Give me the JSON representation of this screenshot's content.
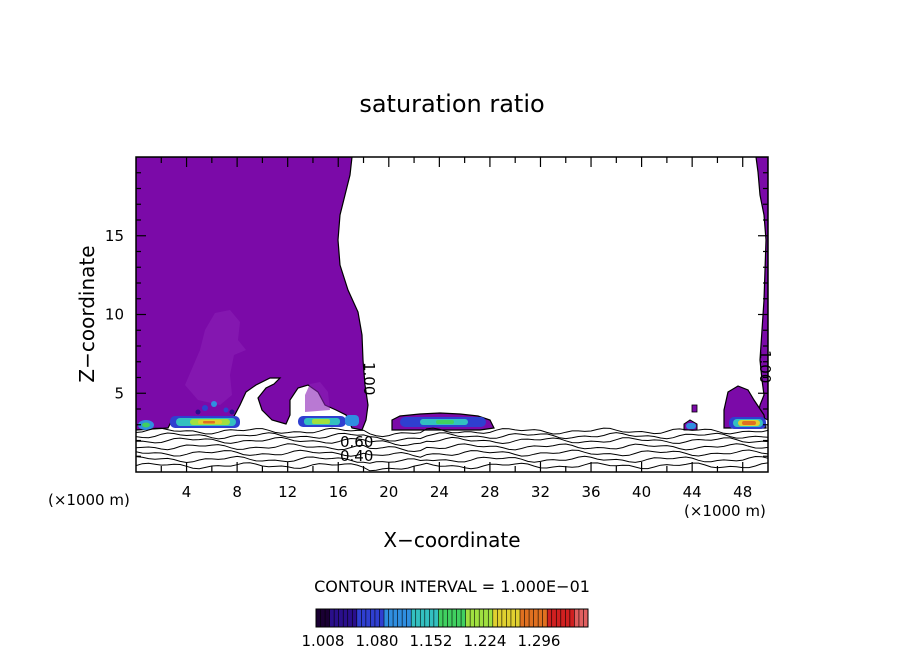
{
  "chart_data": {
    "type": "contour",
    "title": "saturation ratio",
    "xlabel": "X−coordinate",
    "ylabel": "Z−coordinate",
    "x_units_left": "(×1000 m)",
    "x_units_right": "(×1000 m)",
    "xlim": [
      0,
      50
    ],
    "ylim": [
      0,
      20
    ],
    "x_ticks": [
      "4",
      "8",
      "12",
      "16",
      "20",
      "24",
      "28",
      "32",
      "36",
      "40",
      "44",
      "48"
    ],
    "y_ticks": [
      "5",
      "10",
      "15"
    ],
    "contour_interval_text": "CONTOUR INTERVAL = 1.000E−01",
    "contour_labels": [
      "1.00",
      "0.60",
      "0.40",
      "1.00"
    ],
    "color_scale": {
      "labels": [
        "1.008",
        "1.080",
        "1.152",
        "1.224",
        "1.296"
      ],
      "colors": [
        "#1a0033",
        "#2a0f8c",
        "#2f3fd0",
        "#2f8ee0",
        "#33c0c0",
        "#40d060",
        "#a0e040",
        "#e0d030",
        "#e07020",
        "#d02020",
        "#e06060"
      ]
    },
    "fill_color": "#7b0aa8",
    "low_level_lines_z": [
      0.4,
      0.8,
      1.2,
      1.6,
      2.0,
      2.3,
      2.6
    ]
  }
}
